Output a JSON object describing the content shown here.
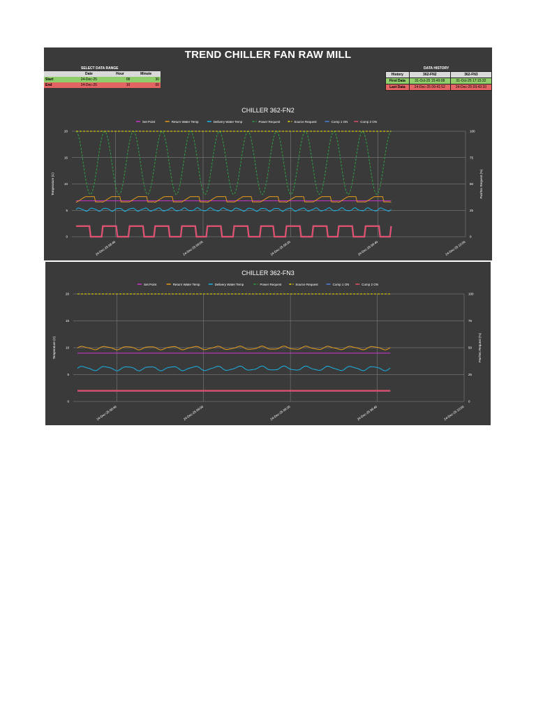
{
  "header": {
    "title": "TREND CHILLER FAN RAW MILL",
    "select_label": "SELECT DATA RANGE",
    "history_label": "DATA HISTORY"
  },
  "range": {
    "columns": [
      "Date",
      "Hour",
      "Minute"
    ],
    "start": {
      "label": "Start",
      "date": "24-Dec-25",
      "hour": "08",
      "minute": "30"
    },
    "end": {
      "label": "End",
      "date": "24-Dec-25",
      "hour": "10",
      "minute": "00"
    }
  },
  "history": {
    "columns": [
      "History",
      "362-FN2",
      "362-FN3"
    ],
    "first": {
      "label": "First Data",
      "fn2": "31-Oct-25 15:49:08",
      "fn3": "31-Oct-25 17:15:32"
    },
    "last": {
      "label": "Last Data",
      "fn2": "24-Dec-25 09:41:52",
      "fn3": "24-Dec-25 09:43:33"
    }
  },
  "colors": {
    "setpoint": "#cc33cc",
    "return": "#e69a1a",
    "delivery": "#1ab2e6",
    "power": "#2ea043",
    "source": "#f0e000",
    "comp1": "#4f7fe0",
    "comp2": "#e0506a",
    "background": "#3a3a3a",
    "grid": "#8a8a8a"
  },
  "chart_data": [
    {
      "type": "line",
      "title": "CHILLER 362-FN2",
      "ylabel": "Temperature (C)",
      "y2label": "Pwr/Src Request (%)",
      "ylim": [
        0,
        20
      ],
      "y2lim": [
        0,
        100
      ],
      "yticks": [
        "0",
        "5",
        "10",
        "15",
        "20"
      ],
      "y2ticks": [
        "0",
        "25",
        "50",
        "75",
        "100"
      ],
      "xticks": [
        "24-Dec-25 08:40",
        "24-Dec-25 09:00",
        "24-Dec-25 09:20",
        "24-Dec-25 09:40",
        "24-Dec-25 10:00"
      ],
      "legend_position": "top",
      "grid": true,
      "series": [
        {
          "name": "Set Point",
          "axis": "left",
          "values": [
            6.8,
            6.8,
            6.8,
            6.8,
            6.8,
            6.8,
            6.8,
            6.8,
            6.8,
            6.8,
            6.8,
            6.8
          ]
        },
        {
          "name": "Return Water Temp",
          "axis": "left",
          "pattern": "sawtooth",
          "min": 6.5,
          "max": 7.6,
          "cycles": 12
        },
        {
          "name": "Delivery Water Temp",
          "axis": "left",
          "pattern": "wave",
          "min": 4.8,
          "max": 5.5,
          "cycles": 24
        },
        {
          "name": "Power Request",
          "axis": "right",
          "pattern": "oscillation",
          "min": 40,
          "max": 100,
          "cycles": 11
        },
        {
          "name": "Source Request",
          "axis": "right",
          "values": [
            100,
            100,
            100,
            100,
            100,
            100,
            100,
            100,
            100,
            100,
            100,
            100
          ]
        },
        {
          "name": "Comp 1 ON",
          "axis": "left",
          "pattern": "square",
          "low": 0,
          "high": 2,
          "cycles": 12
        },
        {
          "name": "Comp 2 ON",
          "axis": "left",
          "pattern": "square",
          "low": 0,
          "high": 2,
          "cycles": 12
        }
      ]
    },
    {
      "type": "line",
      "title": "CHILLER 362-FN3",
      "ylabel": "Temperature (C)",
      "y2label": "Pwr/Src Request (%)",
      "ylim": [
        0,
        20
      ],
      "y2lim": [
        0,
        100
      ],
      "yticks": [
        "0",
        "5",
        "10",
        "15",
        "20"
      ],
      "y2ticks": [
        "0",
        "25",
        "50",
        "75",
        "100"
      ],
      "xticks": [
        "24-Dec-25 08:40",
        "24-Dec-25 09:00",
        "24-Dec-25 09:20",
        "24-Dec-25 09:40",
        "24-Dec-25 10:00"
      ],
      "legend_position": "top",
      "grid": true,
      "series": [
        {
          "name": "Set Point",
          "axis": "left",
          "values": [
            9.0,
            9.0,
            9.0,
            9.0,
            9.0,
            9.0,
            9.0,
            9.0,
            9.0,
            9.0,
            9.0,
            9.0
          ]
        },
        {
          "name": "Return Water Temp",
          "axis": "left",
          "pattern": "wave",
          "min": 9.6,
          "max": 10.3,
          "cycles": 14
        },
        {
          "name": "Delivery Water Temp",
          "axis": "left",
          "pattern": "wave",
          "min": 5.7,
          "max": 6.6,
          "cycles": 14
        },
        {
          "name": "Power Request",
          "axis": "right",
          "values": [
            100,
            100,
            100,
            100,
            100,
            100,
            100,
            100,
            100,
            100,
            100,
            100
          ]
        },
        {
          "name": "Source Request",
          "axis": "right",
          "values": [
            100,
            100,
            100,
            100,
            100,
            100,
            100,
            100,
            100,
            100,
            100,
            100
          ]
        },
        {
          "name": "Comp 1 ON",
          "axis": "left",
          "values": [
            2,
            2,
            2,
            2,
            2,
            2,
            2,
            2,
            2,
            2,
            2,
            2
          ]
        },
        {
          "name": "Comp 2 ON",
          "axis": "left",
          "values": [
            2,
            2,
            2,
            2,
            2,
            2,
            2,
            2,
            2,
            2,
            2,
            2
          ]
        }
      ]
    }
  ]
}
